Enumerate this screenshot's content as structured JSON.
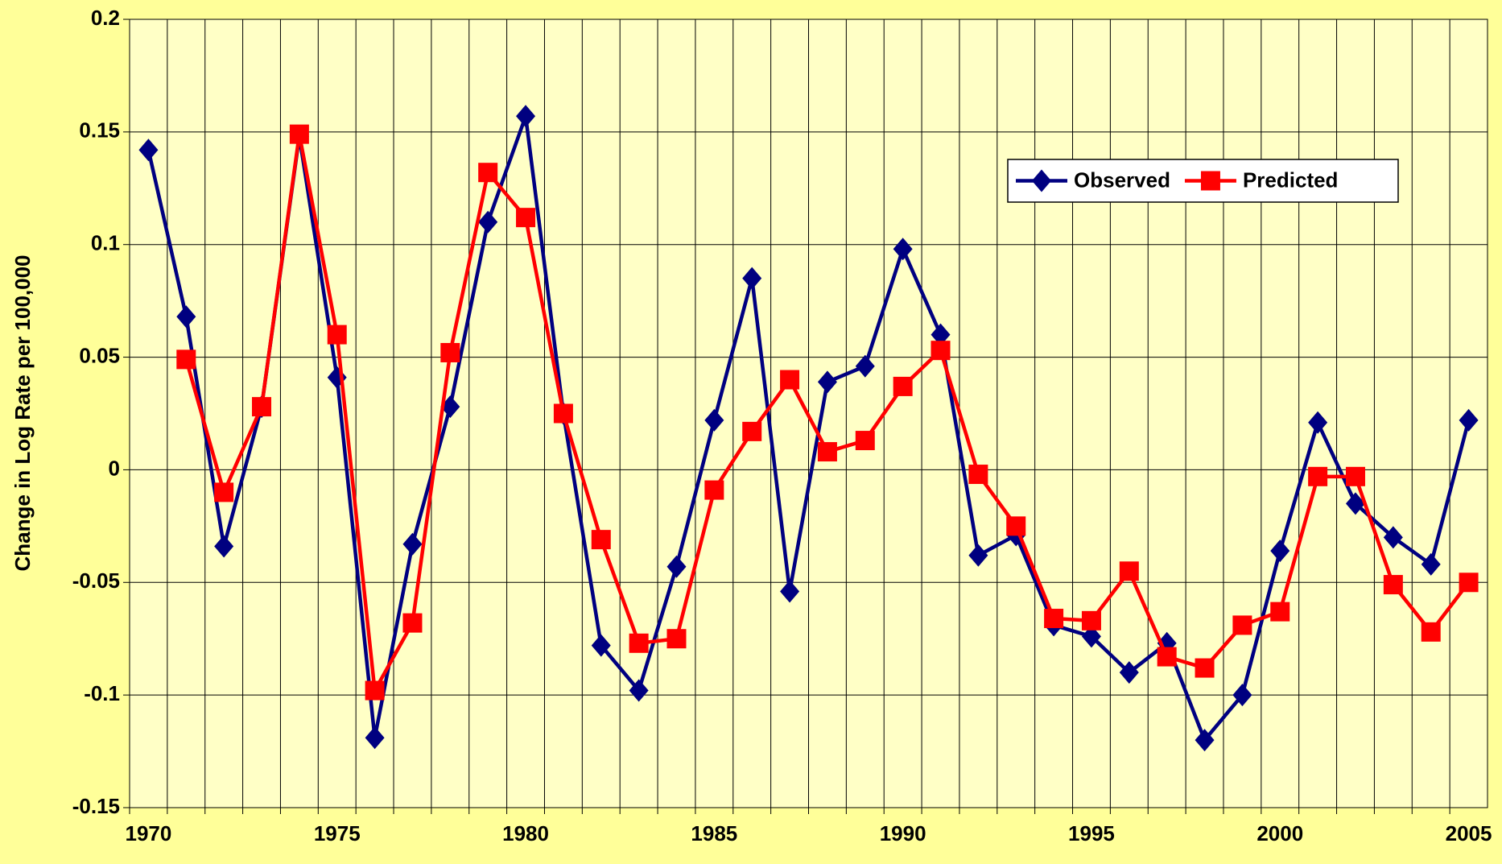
{
  "chart_data": {
    "type": "line",
    "ylabel": "Change in Log Rate per 100,000",
    "categories": [
      "1970",
      null,
      null,
      null,
      null,
      "1975",
      null,
      null,
      null,
      null,
      "1980",
      null,
      null,
      null,
      null,
      "1985",
      null,
      null,
      null,
      null,
      "1990",
      null,
      null,
      null,
      null,
      "1995",
      null,
      null,
      null,
      null,
      "2000",
      null,
      null,
      null,
      null,
      "2005"
    ],
    "series": [
      {
        "name": "Observed",
        "color": "#000080",
        "marker": "diamond",
        "values": [
          0.142,
          0.068,
          -0.034,
          0.028,
          0.148,
          0.041,
          -0.119,
          -0.033,
          0.028,
          0.11,
          0.157,
          0.025,
          -0.078,
          -0.098,
          -0.043,
          0.022,
          0.085,
          -0.054,
          0.039,
          0.046,
          0.098,
          0.06,
          -0.038,
          -0.029,
          -0.069,
          -0.074,
          -0.09,
          -0.077,
          -0.12,
          -0.1,
          -0.036,
          0.021,
          -0.015,
          -0.03,
          -0.042,
          0.022
        ]
      },
      {
        "name": "Predicted",
        "color": "#FF0000",
        "marker": "square",
        "values": [
          null,
          0.049,
          -0.01,
          0.028,
          0.149,
          0.06,
          -0.098,
          -0.068,
          0.052,
          0.132,
          0.112,
          0.025,
          -0.031,
          -0.077,
          -0.075,
          -0.009,
          0.017,
          0.04,
          0.008,
          0.013,
          0.037,
          0.053,
          -0.002,
          -0.025,
          -0.066,
          -0.067,
          -0.045,
          -0.083,
          -0.088,
          -0.069,
          -0.063,
          -0.003,
          -0.003,
          -0.051,
          -0.072,
          -0.05
        ]
      }
    ],
    "ylim": [
      -0.15,
      0.2
    ],
    "yticks": [
      -0.15,
      -0.1,
      -0.05,
      0,
      0.05,
      0.1,
      0.15,
      0.2
    ],
    "grid": true,
    "legend": "upper right"
  }
}
